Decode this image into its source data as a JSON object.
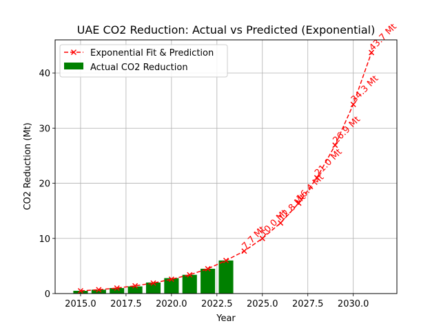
{
  "chart_data": {
    "type": "bar",
    "title": "UAE CO2 Reduction: Actual vs Predicted (Exponential)",
    "xlabel": "Year",
    "ylabel": "CO2 Reduction (Mt)",
    "xlim": [
      2013.6,
      2032.4
    ],
    "ylim": [
      0,
      46
    ],
    "xticks": [
      "2015.0",
      "2017.5",
      "2020.0",
      "2022.5",
      "2025.0",
      "2027.5",
      "2030.0"
    ],
    "xtick_values": [
      2015.0,
      2017.5,
      2020.0,
      2022.5,
      2025.0,
      2027.5,
      2030.0
    ],
    "yticks": [
      "0",
      "10",
      "20",
      "30",
      "40"
    ],
    "ytick_values": [
      0,
      10,
      20,
      30,
      40
    ],
    "grid": true,
    "legend_position": "upper-left",
    "colors": {
      "bars": "#008000",
      "fit": "#ff0000"
    },
    "series": [
      {
        "name": "Exponential Fit & Prediction",
        "kind": "line",
        "style": "dashed-x-marker",
        "x": [
          2015,
          2016,
          2017,
          2018,
          2019,
          2020,
          2021,
          2022,
          2023,
          2024,
          2025,
          2026,
          2027,
          2028,
          2029,
          2030,
          2031
        ],
        "values": [
          0.5,
          0.7,
          1.0,
          1.4,
          1.9,
          2.6,
          3.4,
          4.5,
          6.0,
          7.7,
          10.0,
          12.8,
          16.4,
          21.0,
          26.9,
          34.3,
          43.7
        ]
      },
      {
        "name": "Actual CO2 Reduction",
        "kind": "bar",
        "x": [
          2015,
          2016,
          2017,
          2018,
          2019,
          2020,
          2021,
          2022,
          2023
        ],
        "values": [
          0.5,
          0.7,
          1.0,
          1.3,
          2.0,
          2.8,
          3.4,
          4.5,
          6.0
        ]
      }
    ],
    "prediction_labels": [
      {
        "x": 2024,
        "y": 7.7,
        "text": "7.7 Mt"
      },
      {
        "x": 2025,
        "y": 10.0,
        "text": "10.0 Mt"
      },
      {
        "x": 2026,
        "y": 12.8,
        "text": "12.8 Mt"
      },
      {
        "x": 2027,
        "y": 16.4,
        "text": "16.4 Mt"
      },
      {
        "x": 2028,
        "y": 21.0,
        "text": "21.0 Mt"
      },
      {
        "x": 2029,
        "y": 26.9,
        "text": "26.9 Mt"
      },
      {
        "x": 2030,
        "y": 34.3,
        "text": "34.3 Mt"
      },
      {
        "x": 2031,
        "y": 43.7,
        "text": "43.7 Mt"
      }
    ]
  }
}
